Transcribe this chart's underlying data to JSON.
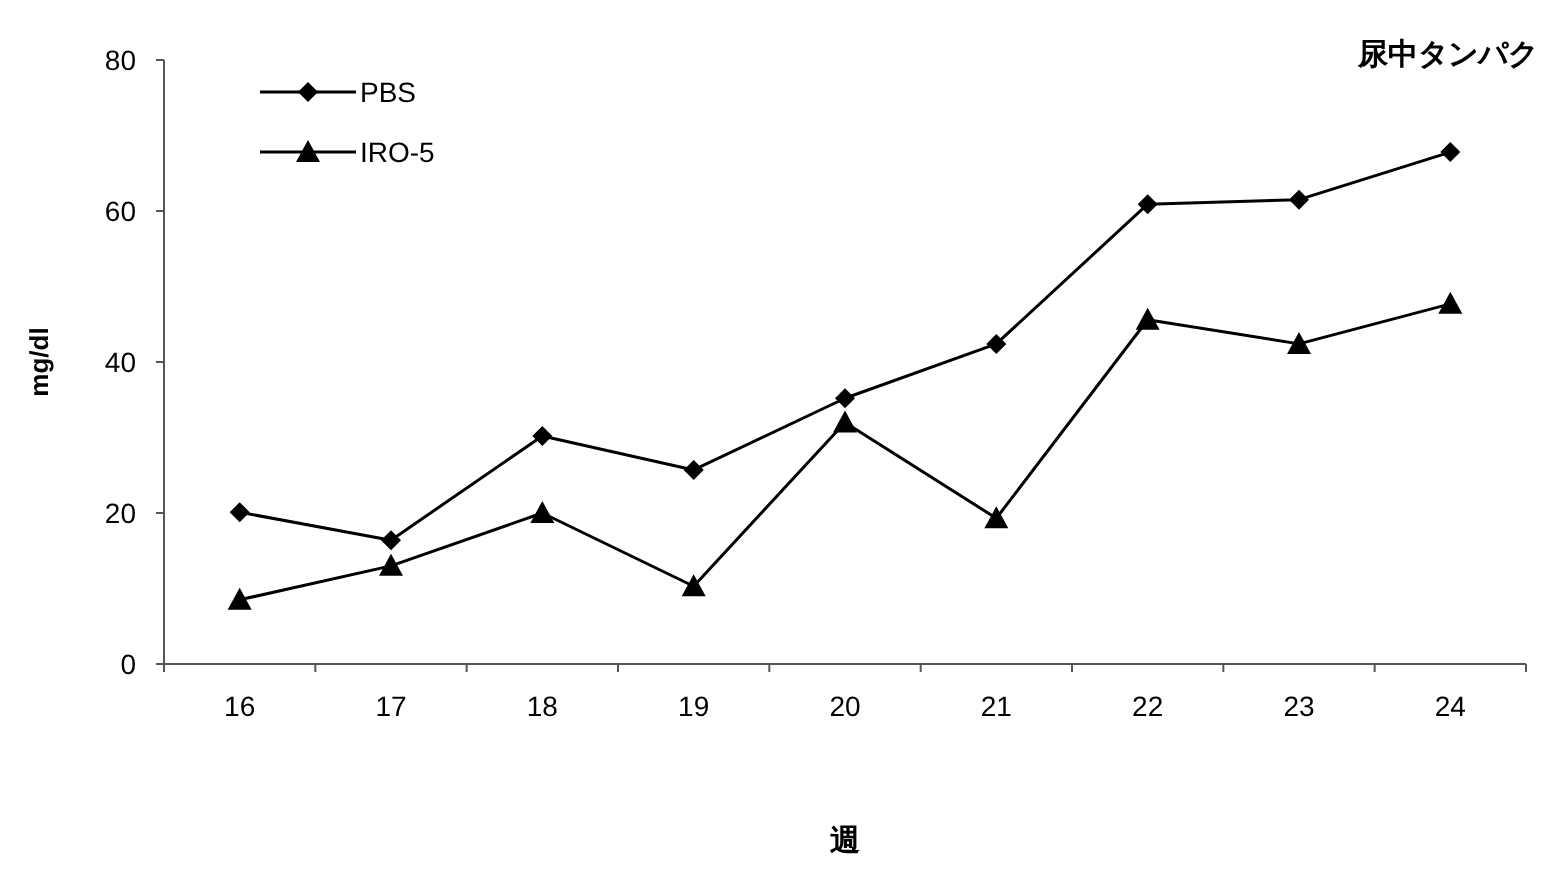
{
  "chart_data": {
    "type": "line",
    "title": "尿中タンパク",
    "xlabel": "週",
    "ylabel": "mg/dl",
    "categories": [
      "16",
      "17",
      "18",
      "19",
      "20",
      "21",
      "22",
      "23",
      "24"
    ],
    "series": [
      {
        "name": "PBS",
        "color": "#000000",
        "marker": "diamond",
        "values": [
          20.1,
          16.4,
          30.2,
          25.7,
          35.2,
          42.4,
          60.9,
          61.5,
          67.8
        ]
      },
      {
        "name": "IRO-5",
        "color": "#000000",
        "marker": "triangle",
        "values": [
          8.5,
          13,
          20,
          10.3,
          32,
          19.3,
          45.6,
          42.4,
          47.7
        ]
      }
    ],
    "ylim": [
      0,
      80
    ],
    "yticks": [
      0,
      20,
      40,
      60,
      80
    ],
    "grid": false,
    "legend": "top left",
    "line_style": "solid"
  }
}
